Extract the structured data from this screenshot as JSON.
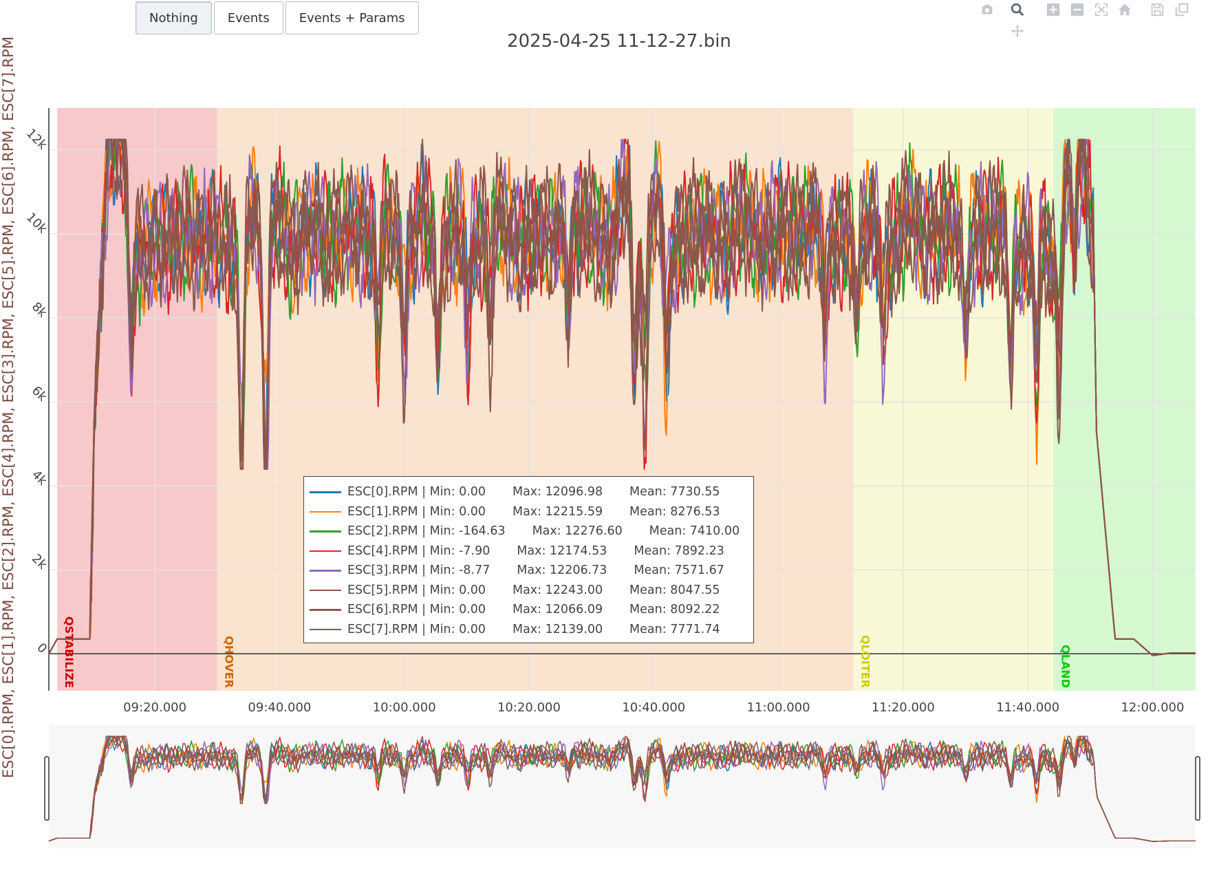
{
  "toolbar": {
    "buttons": [
      {
        "label": "Nothing",
        "active": true
      },
      {
        "label": "Events",
        "active": false
      },
      {
        "label": "Events + Params",
        "active": false
      }
    ]
  },
  "modebar": {
    "icons": [
      "camera-icon",
      "zoom-icon",
      "zoom-in-icon",
      "zoom-out-icon",
      "autoscale-icon",
      "home-icon",
      "save-icon",
      "collection-icon",
      "pan-icon"
    ],
    "active": "zoom-icon"
  },
  "chart_data": {
    "type": "line",
    "title": "2025-04-25 11-12-27.bin",
    "ylabel": "ESC[0].RPM, ESC[1].RPM, ESC[2].RPM, ESC[4].RPM, ESC[3].RPM, ESC[5].RPM, ESC[6].RPM, ESC[7].RPM",
    "xlabel": "",
    "x_unit": "minutes",
    "xlim": [
      9.05,
      12.115
    ],
    "ylim": [
      -880,
      13000
    ],
    "x_ticks": [
      {
        "value": 9.3333,
        "label": "09:20.000"
      },
      {
        "value": 9.6667,
        "label": "09:40.000"
      },
      {
        "value": 10.0,
        "label": "10:00.000"
      },
      {
        "value": 10.3333,
        "label": "10:20.000"
      },
      {
        "value": 10.6667,
        "label": "10:40.000"
      },
      {
        "value": 11.0,
        "label": "11:00.000"
      },
      {
        "value": 11.3333,
        "label": "11:20.000"
      },
      {
        "value": 11.6667,
        "label": "11:40.000"
      },
      {
        "value": 12.0,
        "label": "12:00.000"
      }
    ],
    "y_ticks": [
      {
        "value": 0,
        "label": "0"
      },
      {
        "value": 2000,
        "label": "2k"
      },
      {
        "value": 4000,
        "label": "4k"
      },
      {
        "value": 6000,
        "label": "6k"
      },
      {
        "value": 8000,
        "label": "8k"
      },
      {
        "value": 10000,
        "label": "10k"
      },
      {
        "value": 12000,
        "label": "12k"
      }
    ],
    "grid": true,
    "modes": [
      {
        "name": "QSTABILIZE",
        "start": 9.072,
        "end": 9.5,
        "color": "#f5b7b9",
        "label_color": "#cc0000"
      },
      {
        "name": "QHOVER",
        "start": 9.5,
        "end": 11.2,
        "color": "#f8d9bf",
        "label_color": "#cc6600"
      },
      {
        "name": "QLOITER",
        "start": 11.2,
        "end": 11.735,
        "color": "#f6f5c8",
        "label_color": "#cccc00"
      },
      {
        "name": "QLAND",
        "start": 11.735,
        "end": 12.115,
        "color": "#c7f5c2",
        "label_color": "#00cc00"
      }
    ],
    "legend_position": "bottom-center",
    "series": [
      {
        "name": "ESC[0].RPM",
        "color": "#1f77b4",
        "min": "0.00",
        "max": "12096.98",
        "mean": "7730.55",
        "legend": "ESC[0].RPM | Min: 0.00       Max: 12096.98       Mean: 7730.55"
      },
      {
        "name": "ESC[1].RPM",
        "color": "#ff7f0e",
        "min": "0.00",
        "max": "12215.59",
        "mean": "8276.53",
        "legend": "ESC[1].RPM | Min: 0.00       Max: 12215.59       Mean: 8276.53"
      },
      {
        "name": "ESC[2].RPM",
        "color": "#2ca02c",
        "min": "-164.63",
        "max": "12276.60",
        "mean": "7410.00",
        "legend": "ESC[2].RPM | Min: -164.63       Max: 12276.60       Mean: 7410.00"
      },
      {
        "name": "ESC[4].RPM",
        "color": "#d62728",
        "min": "-7.90",
        "max": "12174.53",
        "mean": "7892.23",
        "legend": "ESC[4].RPM | Min: -7.90       Max: 12174.53       Mean: 7892.23"
      },
      {
        "name": "ESC[3].RPM",
        "color": "#9467bd",
        "min": "-8.77",
        "max": "12206.73",
        "mean": "7571.67",
        "legend": "ESC[3].RPM | Min: -8.77       Max: 12206.73       Mean: 7571.67"
      },
      {
        "name": "ESC[5].RPM",
        "color": "#8c564b",
        "min": "0.00",
        "max": "12243.00",
        "mean": "8047.55",
        "legend": "ESC[5].RPM | Min: 0.00       Max: 12243.00       Mean: 8047.55"
      },
      {
        "name": "ESC[6].RPM",
        "color": "#8c564b",
        "min": "0.00",
        "max": "12066.09",
        "mean": "8092.22",
        "legend": "ESC[6].RPM | Min: 0.00       Max: 12066.09       Mean: 8092.22"
      },
      {
        "name": "ESC[7].RPM",
        "color": "#8c564b",
        "min": "0.00",
        "max": "12139.00",
        "mean": "7771.74",
        "legend": "ESC[7].RPM | Min: 0.00       Max: 12139.00       Mean: 7771.74"
      }
    ],
    "envelope": {
      "x": [
        9.05,
        9.072,
        9.16,
        9.173,
        9.19,
        9.21,
        9.25,
        9.29,
        9.33,
        9.38,
        9.42,
        9.46,
        9.5,
        9.55,
        9.6,
        9.62,
        9.66,
        9.7,
        9.75,
        9.8,
        9.85,
        9.9,
        9.95,
        10.0,
        10.05,
        10.1,
        10.15,
        10.2,
        10.25,
        10.3,
        10.35,
        10.4,
        10.45,
        10.5,
        10.55,
        10.6,
        10.62,
        10.65,
        10.68,
        10.7,
        10.75,
        10.8,
        10.85,
        10.9,
        10.95,
        11.0,
        11.05,
        11.1,
        11.15,
        11.2,
        11.25,
        11.3,
        11.35,
        11.4,
        11.45,
        11.5,
        11.55,
        11.6,
        11.65,
        11.7,
        11.73,
        11.76,
        11.78,
        11.82,
        11.843,
        11.85,
        11.9,
        11.95,
        12.0,
        12.05,
        12.115
      ],
      "y": [
        0,
        350,
        350,
        5800,
        9000,
        12200,
        12000,
        9500,
        9800,
        9800,
        10000,
        9800,
        10000,
        9500,
        10800,
        9200,
        10500,
        9500,
        10200,
        9800,
        10100,
        9900,
        10300,
        9600,
        10500,
        9700,
        10200,
        9800,
        10600,
        9700,
        10100,
        9900,
        10300,
        10200,
        9600,
        11400,
        9000,
        9800,
        11000,
        9200,
        10000,
        10100,
        9700,
        10400,
        9800,
        10100,
        9900,
        10300,
        9800,
        10000,
        10200,
        9600,
        10500,
        9800,
        10300,
        9900,
        10000,
        10200,
        9500,
        10400,
        9000,
        10800,
        11700,
        11600,
        9500,
        5300,
        350,
        350,
        -40,
        20,
        20
      ]
    }
  }
}
